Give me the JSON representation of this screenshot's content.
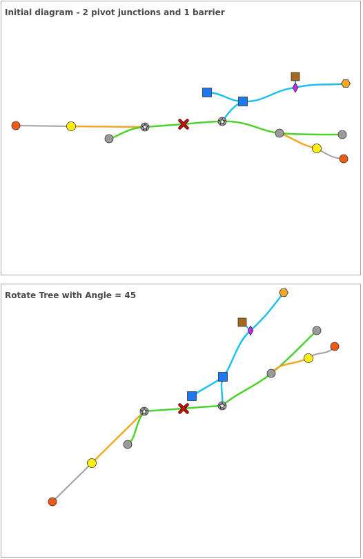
{
  "panels": [
    {
      "title": "Initial diagram - 2 pivot junctions and 1 barrier"
    },
    {
      "title": "Rotate Tree with Angle = 45"
    }
  ],
  "colors": {
    "gray_line": "#a0a0a0",
    "orange_line": "#f5a623",
    "green_line": "#4cd22a",
    "blue_line": "#1ec0ee",
    "source_fill": "#f05a14",
    "yellow_fill": "#ffee10",
    "gray_fill": "#9a9a9a",
    "blue_fill": "#1e78f0",
    "brown_fill": "#a8681c",
    "magenta_fill": "#c62ae8",
    "hexagon_fill": "#f5a623",
    "barrier": "#cc1111"
  }
}
